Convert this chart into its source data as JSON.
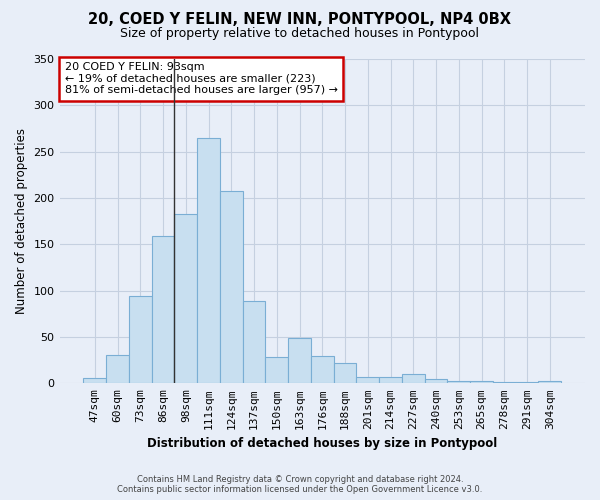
{
  "title": "20, COED Y FELIN, NEW INN, PONTYPOOL, NP4 0BX",
  "subtitle": "Size of property relative to detached houses in Pontypool",
  "xlabel": "Distribution of detached houses by size in Pontypool",
  "ylabel": "Number of detached properties",
  "bar_color": "#c8dff0",
  "bar_edge_color": "#7aaed4",
  "categories": [
    "47sqm",
    "60sqm",
    "73sqm",
    "86sqm",
    "98sqm",
    "111sqm",
    "124sqm",
    "137sqm",
    "150sqm",
    "163sqm",
    "176sqm",
    "188sqm",
    "201sqm",
    "214sqm",
    "227sqm",
    "240sqm",
    "253sqm",
    "265sqm",
    "278sqm",
    "291sqm",
    "304sqm"
  ],
  "values": [
    6,
    31,
    94,
    159,
    183,
    265,
    208,
    89,
    28,
    49,
    29,
    22,
    7,
    7,
    10,
    5,
    3,
    3,
    1,
    1,
    3
  ],
  "ylim": [
    0,
    350
  ],
  "yticks": [
    0,
    50,
    100,
    150,
    200,
    250,
    300,
    350
  ],
  "annotation_lines": [
    "20 COED Y FELIN: 93sqm",
    "← 19% of detached houses are smaller (223)",
    "81% of semi-detached houses are larger (957) →"
  ],
  "property_bar_index": 4,
  "footer1": "Contains HM Land Registry data © Crown copyright and database right 2024.",
  "footer2": "Contains public sector information licensed under the Open Government Licence v3.0.",
  "bg_color": "#e8eef8",
  "plot_bg_color": "#e8eef8",
  "grid_color": "#c5d0e0"
}
